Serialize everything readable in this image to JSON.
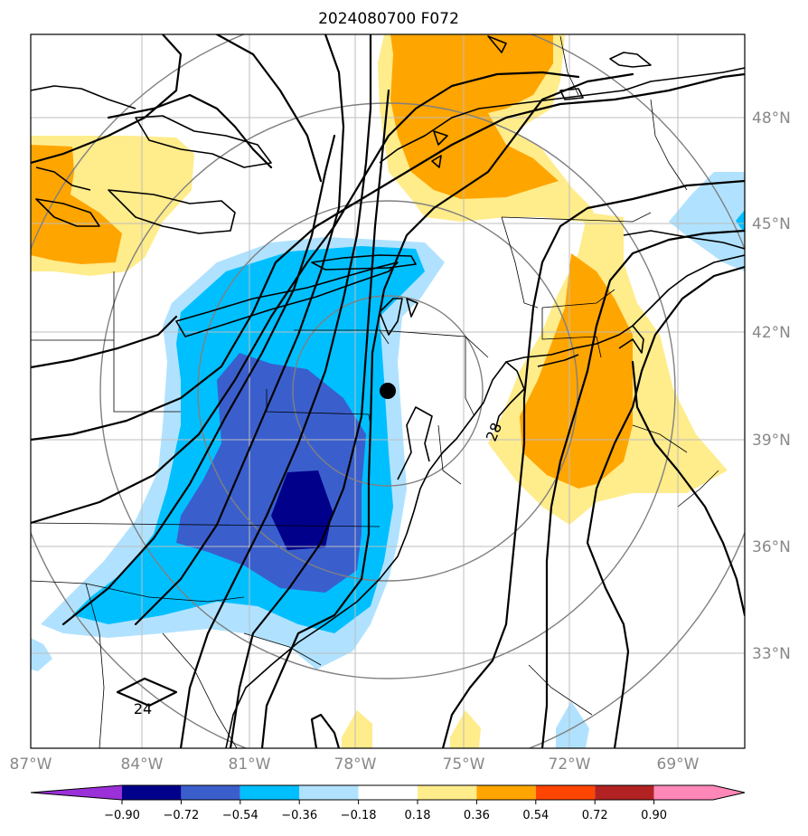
{
  "title": "2024080700 F072",
  "lon_labels": [
    "87°W",
    "84°W",
    "81°W",
    "78°W",
    "75°W",
    "72°W",
    "69°W"
  ],
  "lat_labels": [
    "48°N",
    "45°N",
    "42°N",
    "39°N",
    "36°N",
    "33°N"
  ],
  "colorbar": {
    "ticks": [
      "−0.90",
      "−0.72",
      "−0.54",
      "−0.36",
      "−0.18",
      "0.18",
      "0.36",
      "0.54",
      "0.72",
      "0.90"
    ],
    "colors": [
      "#9b30d9",
      "#00008b",
      "#3a5fcd",
      "#00bfff",
      "#b0e2ff",
      "#ffffff",
      "#ffec8b",
      "#ffa500",
      "#ff4500",
      "#b22222",
      "#ff88b8"
    ]
  },
  "contour_labels": [
    "24",
    "28"
  ],
  "marker": "location-dot",
  "colors": {
    "axis_text": "#888888",
    "grid": "#bdbdbd",
    "range_rings": "#808080"
  }
}
